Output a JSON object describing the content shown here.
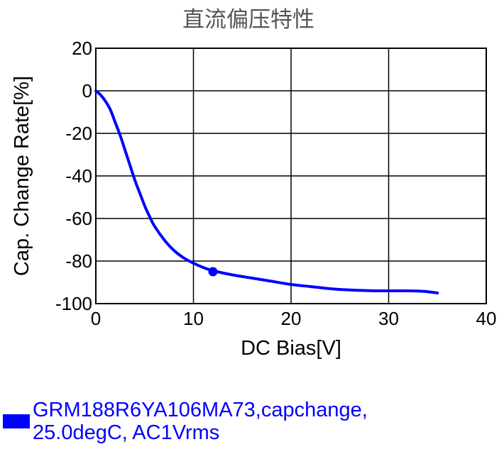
{
  "chart_data": {
    "type": "line",
    "title": "直流偏压特性",
    "xlabel": "DC Bias[V]",
    "ylabel": "Cap. Change Rate[%]",
    "xlim": [
      0,
      40
    ],
    "ylim": [
      -100,
      20
    ],
    "xticks": [
      0,
      10,
      20,
      30,
      40
    ],
    "yticks": [
      20,
      0,
      -20,
      -40,
      -60,
      -80,
      -100
    ],
    "grid": true,
    "legend_position": "bottom-left",
    "series": [
      {
        "name": "GRM188R6YA106MA73,capchange, 25.0degC, AC1Vrms",
        "color": "#0000ff",
        "x": [
          0,
          0.5,
          1,
          1.5,
          2,
          2.5,
          3,
          3.5,
          4,
          4.5,
          5,
          5.5,
          6,
          7,
          8,
          9,
          10,
          11,
          12,
          14,
          16,
          18,
          20,
          22,
          24,
          26,
          28,
          30,
          32,
          33,
          34,
          35
        ],
        "y": [
          0,
          -2,
          -5,
          -9,
          -15,
          -21,
          -28,
          -35,
          -42,
          -48,
          -54,
          -59,
          -63.5,
          -70,
          -75,
          -78.5,
          -81,
          -83,
          -84.5,
          -86.5,
          -88,
          -89.5,
          -91,
          -92,
          -93,
          -93.6,
          -93.9,
          -94,
          -94,
          -94.1,
          -94.4,
          -95
        ]
      }
    ],
    "markers": [
      {
        "x": 12,
        "y": -85
      }
    ]
  },
  "legend": {
    "lines": [
      "GRM188R6YA106MA73,capchange,",
      "25.0degC, AC1Vrms"
    ],
    "color": "#0000ff"
  }
}
